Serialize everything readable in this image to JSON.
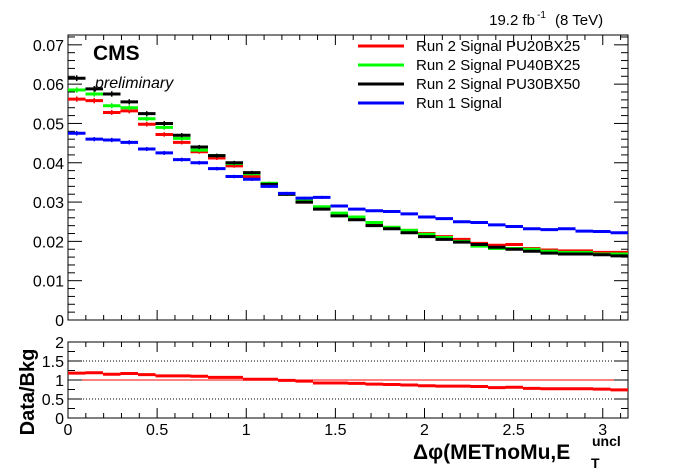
{
  "chart_data": [
    {
      "type": "scatter",
      "panel": "main",
      "lumi_label": "19.2 fb",
      "lumi_sup": "-1",
      "lumi_energy": "(8 TeV)",
      "cms_label": "CMS",
      "prelim_label": "preliminary",
      "xlim": [
        0,
        3.14159
      ],
      "ylim": [
        0,
        0.0725
      ],
      "xticks": [
        0,
        0.5,
        1,
        1.5,
        2,
        2.5,
        3
      ],
      "xtick_labels": [
        "0",
        "0.5",
        "1",
        "1.5",
        "2",
        "2.5",
        "3"
      ],
      "yticks": [
        0,
        0.01,
        0.02,
        0.03,
        0.04,
        0.05,
        0.06,
        0.07
      ],
      "ytick_labels": [
        "0",
        "0.01",
        "0.02",
        "0.03",
        "0.04",
        "0.05",
        "0.06",
        "0.07"
      ],
      "legend_position": "top-right",
      "n_bins": 32,
      "series": [
        {
          "name": "Run 2 Signal PU20BX25",
          "color": "#ff0000",
          "values": [
            0.0562,
            0.0558,
            0.0528,
            0.0532,
            0.0498,
            0.0472,
            0.0452,
            0.0428,
            0.0412,
            0.0392,
            0.0365,
            0.0342,
            0.032,
            0.03,
            0.0285,
            0.0268,
            0.0258,
            0.0245,
            0.0235,
            0.0228,
            0.022,
            0.0212,
            0.0205,
            0.0195,
            0.019,
            0.0192,
            0.0182,
            0.0178,
            0.0176,
            0.0176,
            0.0172,
            0.0172
          ]
        },
        {
          "name": "Run 2 Signal PU40BX25",
          "color": "#00ff00",
          "values": [
            0.0585,
            0.0575,
            0.0545,
            0.054,
            0.0512,
            0.049,
            0.0462,
            0.0432,
            0.0418,
            0.0398,
            0.0372,
            0.0348,
            0.032,
            0.0305,
            0.0288,
            0.0272,
            0.0262,
            0.0248,
            0.0236,
            0.0228,
            0.0218,
            0.021,
            0.02,
            0.0188,
            0.0182,
            0.0182,
            0.018,
            0.0175,
            0.0172,
            0.0172,
            0.0168,
            0.0168
          ]
        },
        {
          "name": "Run 2 Signal PU30BX50",
          "color": "#000000",
          "values": [
            0.0615,
            0.0588,
            0.0575,
            0.0555,
            0.0525,
            0.05,
            0.047,
            0.044,
            0.0418,
            0.04,
            0.0375,
            0.0345,
            0.032,
            0.03,
            0.0282,
            0.0265,
            0.0255,
            0.024,
            0.0232,
            0.0222,
            0.0212,
            0.0205,
            0.0198,
            0.0192,
            0.0185,
            0.018,
            0.0175,
            0.017,
            0.0168,
            0.0168,
            0.0166,
            0.0163
          ]
        },
        {
          "name": "Run 1 Signal",
          "color": "#0000ff",
          "values": [
            0.0475,
            0.046,
            0.0458,
            0.0452,
            0.0435,
            0.0425,
            0.0408,
            0.04,
            0.0385,
            0.0365,
            0.0358,
            0.034,
            0.0322,
            0.031,
            0.0312,
            0.029,
            0.0282,
            0.0278,
            0.0276,
            0.027,
            0.0262,
            0.0258,
            0.025,
            0.0248,
            0.0242,
            0.0238,
            0.0232,
            0.023,
            0.0232,
            0.0226,
            0.0225,
            0.0222
          ]
        }
      ]
    },
    {
      "type": "scatter",
      "panel": "ratio",
      "ylabel": "Data/Bkg",
      "xlabel_main": "Δφ(METnoMu,E",
      "xlabel_sub": "T",
      "xlabel_sup": "uncl",
      "xlim": [
        0,
        3.14159
      ],
      "ylim": [
        0,
        2
      ],
      "yticks": [
        0,
        0.5,
        1,
        1.5,
        2
      ],
      "ytick_labels": [
        "0",
        "0.5",
        "1",
        "1.5",
        "2"
      ],
      "dotted_lines": [
        0.5,
        1.5
      ],
      "reference_line": 1,
      "series": [
        {
          "name": "",
          "color": "#ff0000",
          "values": [
            1.18,
            1.19,
            1.15,
            1.17,
            1.14,
            1.11,
            1.11,
            1.1,
            1.07,
            1.07,
            1.02,
            1.02,
            0.99,
            0.97,
            0.92,
            0.92,
            0.91,
            0.89,
            0.88,
            0.87,
            0.85,
            0.84,
            0.84,
            0.83,
            0.8,
            0.81,
            0.78,
            0.77,
            0.77,
            0.77,
            0.76,
            0.74
          ]
        }
      ]
    }
  ]
}
